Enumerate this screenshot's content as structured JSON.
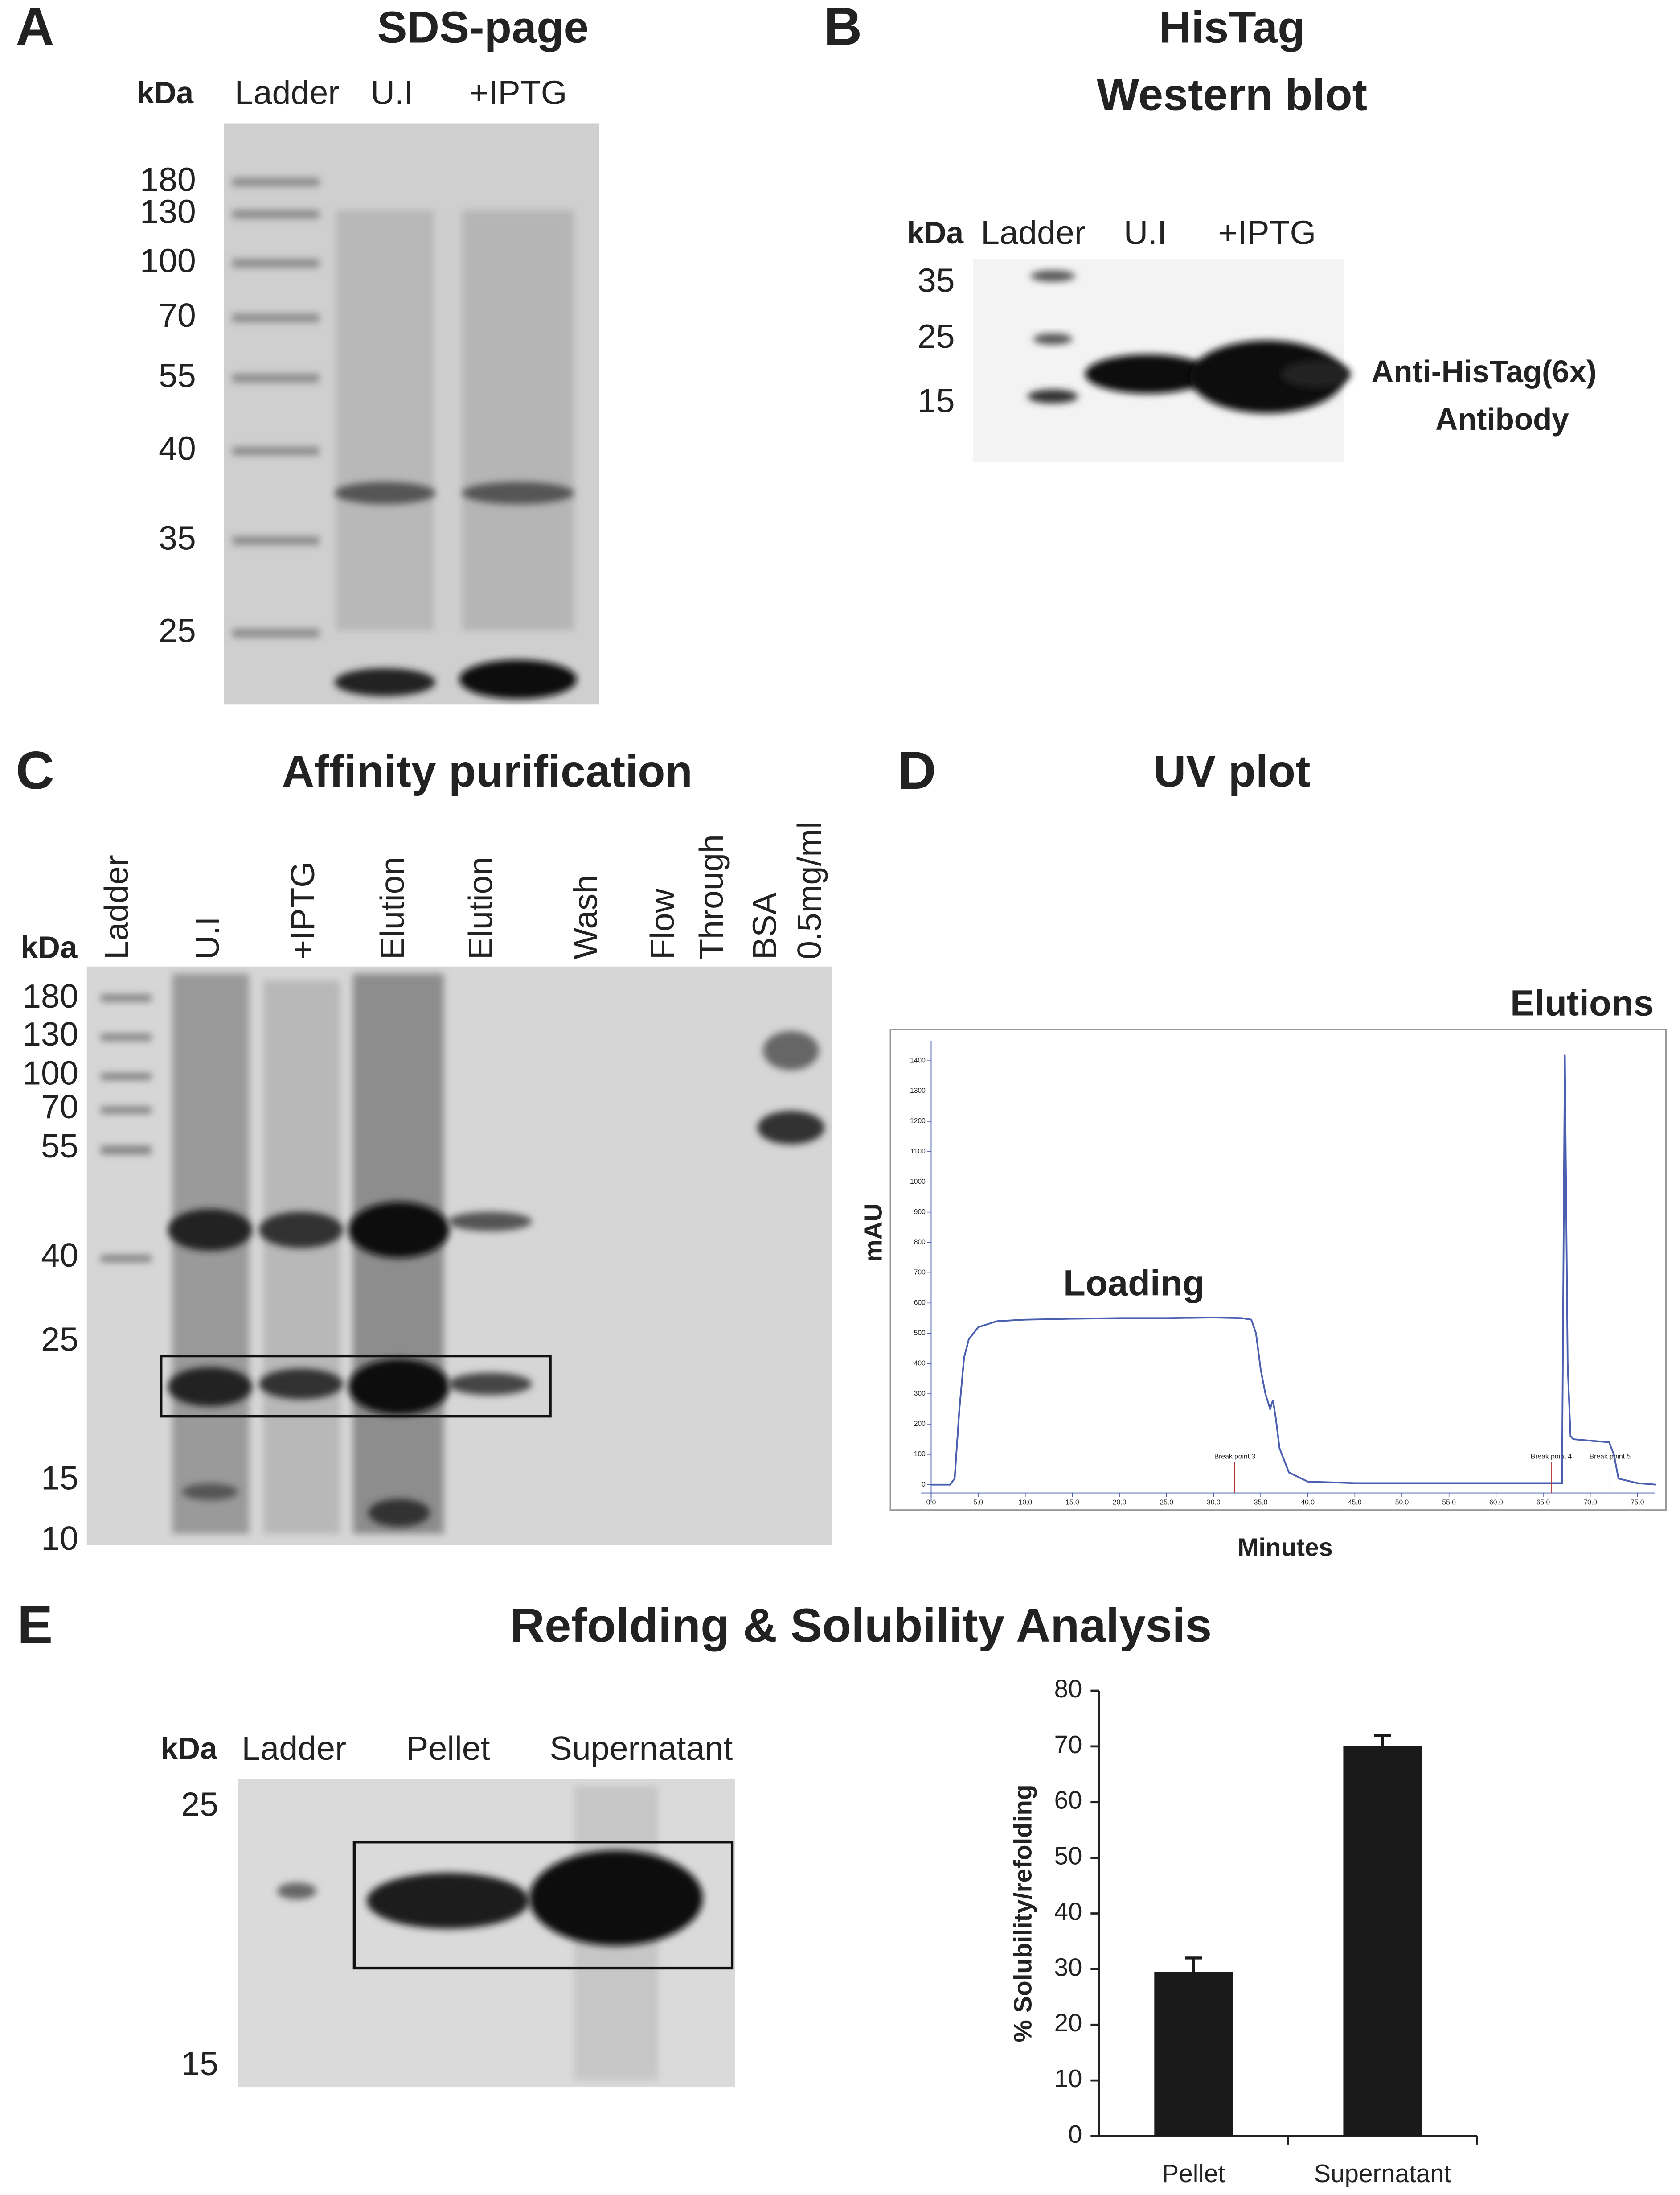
{
  "panels": {
    "a": {
      "letter": "A",
      "title": "SDS-page",
      "unit": "kDa",
      "lanes": [
        "Ladder",
        "U.I",
        "+IPTG"
      ],
      "markers": [
        "180",
        "130",
        "100",
        "70",
        "55",
        "40",
        "35",
        "25"
      ]
    },
    "b": {
      "letter": "B",
      "title": [
        "HisTag",
        "Western blot"
      ],
      "unit": "kDa",
      "lanes": [
        "Ladder",
        "U.I",
        "+IPTG"
      ],
      "markers": [
        "35",
        "25",
        "15"
      ],
      "band_label": [
        "Anti-HisTag(6x)",
        "Antibody"
      ]
    },
    "c": {
      "letter": "C",
      "title": "Affinity purification",
      "unit": "kDa",
      "lanes": [
        "Ladder",
        "U.I",
        "+IPTG",
        "Elution",
        "Elution",
        "Wash",
        "Flow",
        "Through",
        "BSA",
        "0.5mg/ml"
      ],
      "markers": [
        "180",
        "130",
        "100",
        "70",
        "55",
        "40",
        "25",
        "15",
        "10"
      ]
    },
    "d": {
      "letter": "D"
    },
    "e": {
      "letter": "E",
      "title": "Refolding & Solubility Analysis",
      "unit": "kDa",
      "lanes": [
        "Ladder",
        "Pellet",
        "Supernatant"
      ],
      "markers": [
        "25",
        "15"
      ]
    }
  },
  "chart_data": [
    {
      "type": "line",
      "title": "UV plot",
      "x_label": "Minutes",
      "y_label": "mAU",
      "annotations": [
        "Loading",
        "Elutions",
        "Break point 3",
        "Break point 4",
        "Break point 5"
      ],
      "color": "#4a5fb0",
      "x": [
        0,
        2,
        2.5,
        3,
        3.5,
        4,
        5,
        7,
        10,
        15,
        20,
        25,
        30,
        33,
        34,
        34.5,
        35,
        35.5,
        36,
        36.3,
        36.6,
        37,
        38,
        40,
        45,
        50,
        55,
        60,
        65,
        67,
        67.3,
        67.6,
        67.9,
        68.2,
        70,
        72,
        72.5,
        73,
        75,
        77
      ],
      "values": [
        0,
        0,
        20,
        250,
        420,
        480,
        520,
        540,
        545,
        548,
        550,
        550,
        552,
        550,
        545,
        500,
        380,
        300,
        250,
        280,
        220,
        120,
        40,
        10,
        5,
        5,
        5,
        5,
        5,
        5,
        1420,
        400,
        160,
        150,
        145,
        140,
        100,
        20,
        5,
        0
      ],
      "xlim": [
        -1.5,
        77.3
      ],
      "ylim": [
        -70,
        1480
      ],
      "xticks": [
        {
          "value": 0,
          "label": "0.0"
        },
        {
          "value": 5,
          "label": "5.0"
        },
        {
          "value": 10,
          "label": "10.0"
        },
        {
          "value": 15,
          "label": "15.0"
        },
        {
          "value": 20,
          "label": "20.0"
        },
        {
          "value": 25,
          "label": "25.0"
        },
        {
          "value": 30,
          "label": "30.0"
        },
        {
          "value": 35,
          "label": "35.0"
        },
        {
          "value": 40,
          "label": "40.0"
        },
        {
          "value": 45,
          "label": "45.0"
        },
        {
          "value": 50,
          "label": "50.0"
        },
        {
          "value": 55,
          "label": "55.0"
        },
        {
          "value": 60,
          "label": "60.0"
        },
        {
          "value": 65,
          "label": "65.0"
        },
        {
          "value": 70,
          "label": "70.0"
        },
        {
          "value": 75,
          "label": "75.0"
        }
      ],
      "yticks": [
        0,
        100,
        200,
        300,
        400,
        500,
        600,
        700,
        800,
        900,
        1000,
        1100,
        1200,
        1300,
        1400
      ]
    },
    {
      "type": "bar",
      "y_label": "% Solubility/refolding",
      "categories": [
        "Pellet",
        "Supernatant"
      ],
      "values": [
        29.5,
        70
      ],
      "errors": [
        2.5,
        2
      ],
      "color": "#1a1a1a",
      "ylim": [
        0,
        80
      ],
      "yticks": [
        0,
        10,
        20,
        30,
        40,
        50,
        60,
        70,
        80
      ]
    }
  ]
}
